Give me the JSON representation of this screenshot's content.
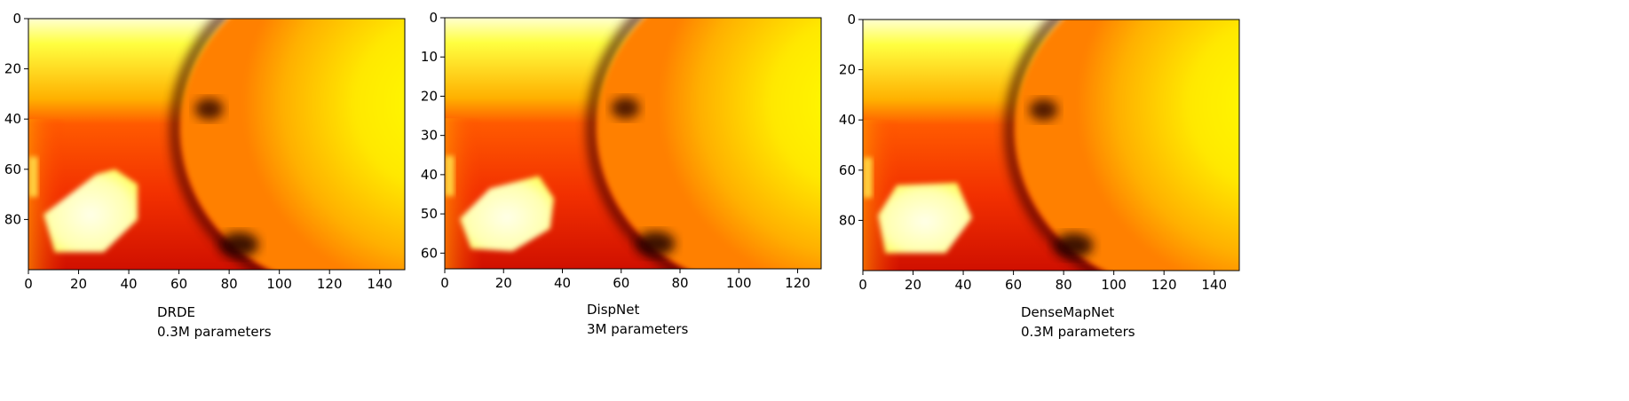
{
  "chart_data": [
    {
      "type": "heatmap",
      "colormap": "hot",
      "title": "",
      "xlabel": "",
      "ylabel": "",
      "xlim": [
        0,
        150
      ],
      "ylim": [
        100,
        0
      ],
      "xticks": [
        0,
        20,
        40,
        60,
        80,
        100,
        120,
        140
      ],
      "yticks": [
        0,
        20,
        40,
        60,
        80
      ],
      "caption": {
        "name": "DRDE",
        "params": "0.3M parameters"
      }
    },
    {
      "type": "heatmap",
      "colormap": "hot",
      "title": "",
      "xlabel": "",
      "ylabel": "",
      "xlim": [
        0,
        128
      ],
      "ylim": [
        64,
        0
      ],
      "xticks": [
        0,
        20,
        40,
        60,
        80,
        100,
        120
      ],
      "yticks": [
        0,
        10,
        20,
        30,
        40,
        50,
        60
      ],
      "caption": {
        "name": "DispNet",
        "params": "3M parameters"
      }
    },
    {
      "type": "heatmap",
      "colormap": "hot",
      "title": "",
      "xlabel": "",
      "ylabel": "",
      "xlim": [
        0,
        150
      ],
      "ylim": [
        100,
        0
      ],
      "xticks": [
        0,
        20,
        40,
        60,
        80,
        100,
        120,
        140
      ],
      "yticks": [
        0,
        20,
        40,
        60,
        80
      ],
      "caption": {
        "name": "DenseMapNet",
        "params": "0.3M parameters"
      }
    }
  ]
}
